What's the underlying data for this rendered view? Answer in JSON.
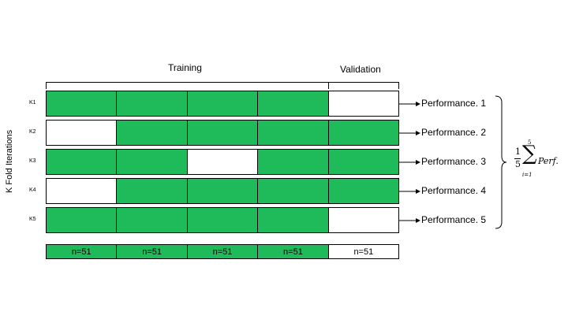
{
  "headers": {
    "training": "Training",
    "validation": "Validation"
  },
  "y_axis_label": "K Fold Iterations",
  "colors": {
    "training": "#1fba5a",
    "validation": "#ffffff",
    "line": "#000000"
  },
  "folds": [
    {
      "label": "K1",
      "cells": [
        "train",
        "train",
        "train",
        "train",
        "val"
      ],
      "performance": "Performance. 1"
    },
    {
      "label": "K2",
      "cells": [
        "val",
        "train",
        "train",
        "train",
        "train"
      ],
      "performance": "Performance. 2"
    },
    {
      "label": "K3",
      "cells": [
        "train",
        "train",
        "val",
        "train",
        "train"
      ],
      "performance": "Performance. 3"
    },
    {
      "label": "K4",
      "cells": [
        "val",
        "train",
        "train",
        "train",
        "train"
      ],
      "performance": "Performance. 4"
    },
    {
      "label": "K5",
      "cells": [
        "train",
        "train",
        "train",
        "train",
        "val"
      ],
      "performance": "Performance. 5"
    }
  ],
  "counts": [
    {
      "text": "n=51",
      "kind": "train"
    },
    {
      "text": "n=51",
      "kind": "train"
    },
    {
      "text": "n=51",
      "kind": "train"
    },
    {
      "text": "n=51",
      "kind": "train"
    },
    {
      "text": "n=51",
      "kind": "val"
    }
  ],
  "formula": {
    "frac_num": "1",
    "frac_den": "5",
    "sum_upper": "5",
    "sum_lower": "i=1",
    "term": "Perf."
  }
}
